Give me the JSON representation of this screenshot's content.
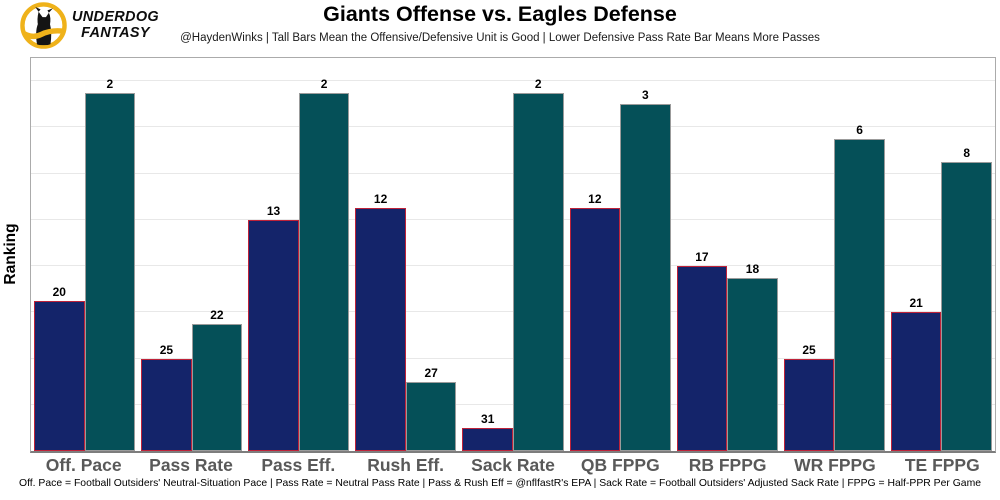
{
  "brand": {
    "name_line1": "UNDERDOG",
    "name_line2": "FANTASY",
    "gold": "#EFB21A"
  },
  "chart_data": {
    "type": "bar",
    "title": "Giants Offense vs. Eagles Defense",
    "subtitle": "@HaydenWinks | Tall Bars Mean the Offensive/Defensive Unit is Good | Lower Defensive Pass Rate Bar Means More Passes",
    "ylabel": "Ranking",
    "categories": [
      "Off. Pace",
      "Pass Rate",
      "Pass Eff.",
      "Rush Eff.",
      "Sack Rate",
      "QB FPPG",
      "RB FPPG",
      "WR FPPG",
      "TE FPPG"
    ],
    "series": [
      {
        "name": "Giants Offense",
        "fill": "#14246A",
        "border": "#BE2239",
        "values": [
          20,
          25,
          13,
          12,
          31,
          12,
          17,
          25,
          21
        ]
      },
      {
        "name": "Eagles Defense",
        "fill": "#055058",
        "border": "#9B9B9B",
        "values": [
          2,
          22,
          2,
          27,
          2,
          3,
          18,
          6,
          8
        ]
      }
    ],
    "value_labels": true,
    "ylim": [
      0,
      34
    ],
    "height_basis": 33,
    "bar_height_rule": "taller bar = better ranking (height = 33 - rank)",
    "gridlines": {
      "orientation": "horizontal",
      "every": 4,
      "color": "#E8E8E8"
    },
    "legend": "none"
  },
  "footer": {
    "note": "Off. Pace = Football Outsiders' Neutral-Situation Pace | Pass Rate = Neutral Pass Rate | Pass & Rush Eff = @nflfastR's EPA | Sack Rate = Football Outsiders' Adjusted Sack Rate | FPPG = Half-PPR Per Game"
  }
}
